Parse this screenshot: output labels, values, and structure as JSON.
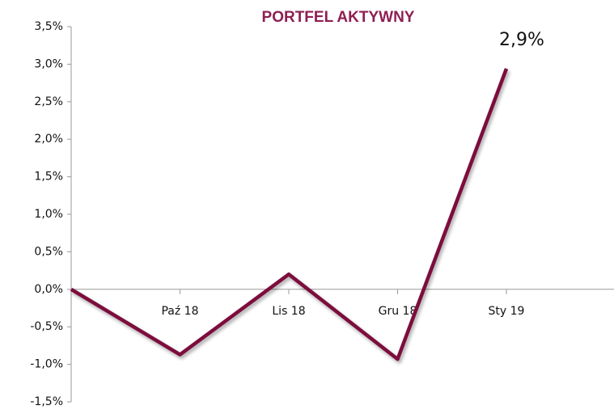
{
  "chart_data": {
    "type": "line",
    "title": "PORTFEL AKTYWNY",
    "categories": [
      null,
      "Paź 18",
      "Lis 18",
      "Gru 18",
      "Sty 19"
    ],
    "series": [
      {
        "color": "#7b0f3e",
        "values": [
          0,
          -0.87,
          0.2,
          -0.93,
          2.94
        ],
        "value_labels": [
          null,
          null,
          null,
          null,
          "2,9%"
        ]
      }
    ],
    "ylim": [
      -1.5,
      3.5
    ],
    "yticks": [
      {
        "value": -1.5,
        "label": "-1,5%"
      },
      {
        "value": -1,
        "label": "-1,0%"
      },
      {
        "value": -0.5,
        "label": "-0,5%"
      },
      {
        "value": 0,
        "label": "0,0%"
      },
      {
        "value": 0.5,
        "label": "0,5%"
      },
      {
        "value": 1,
        "label": "1,0%"
      },
      {
        "value": 1.5,
        "label": "1,5%"
      },
      {
        "value": 2,
        "label": "2,0%"
      },
      {
        "value": 2.5,
        "label": "2,5%"
      },
      {
        "value": 3,
        "label": "3,0%"
      },
      {
        "value": 3.5,
        "label": "3,5%"
      }
    ],
    "title_color": "#8e1f52"
  }
}
